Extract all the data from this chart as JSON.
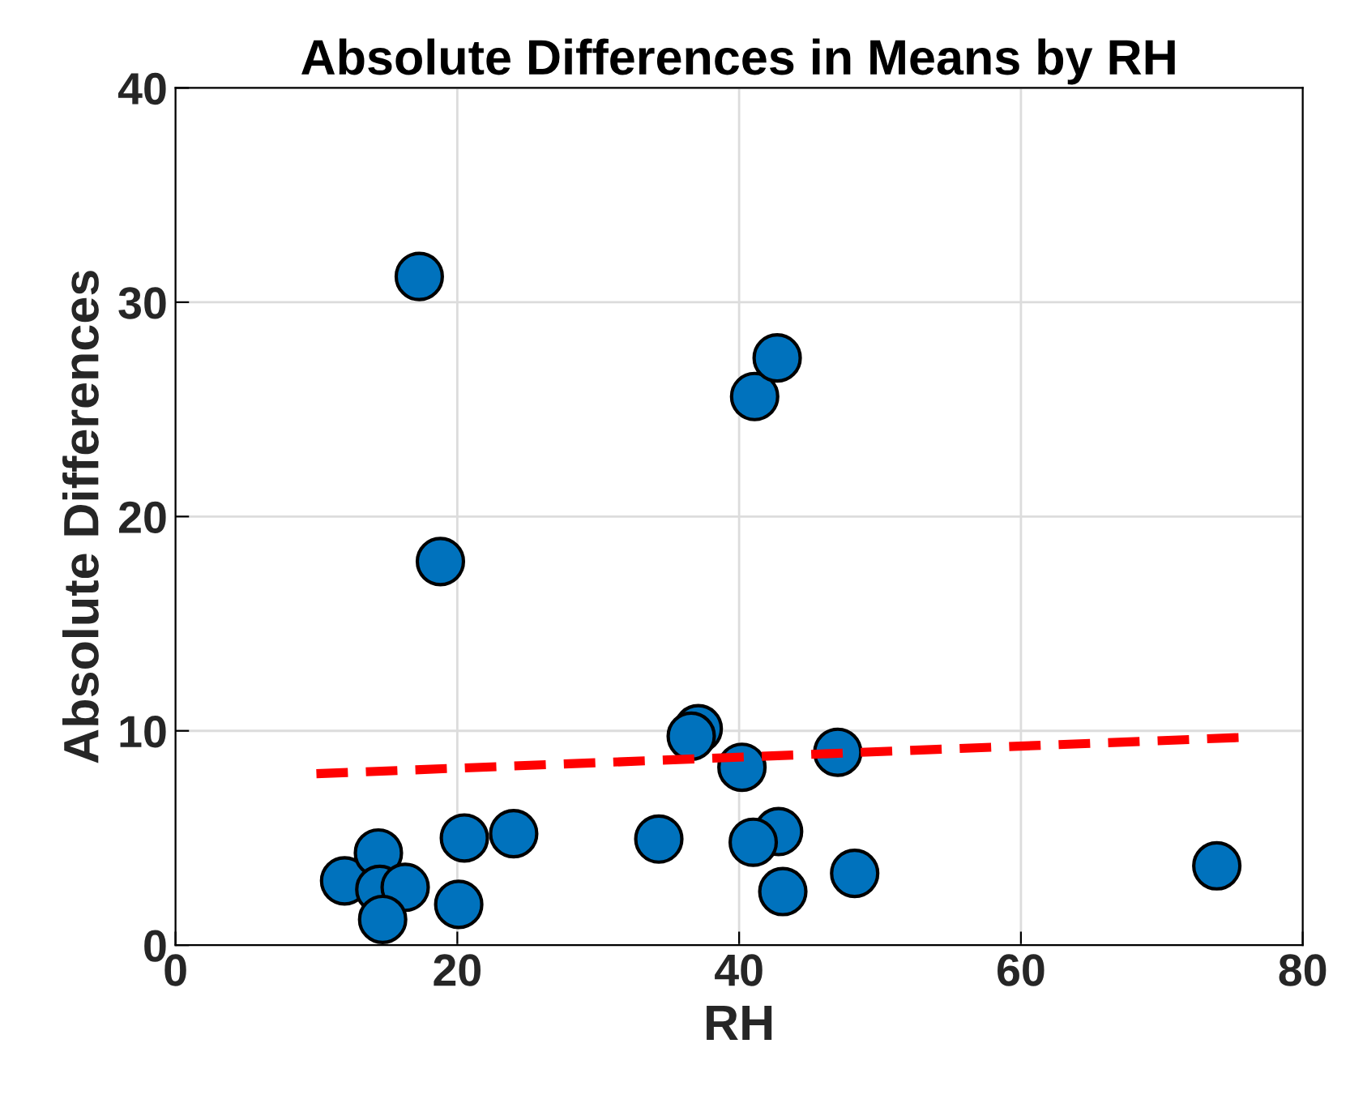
{
  "chart_data": {
    "type": "scatter",
    "title": "Absolute Differences in Means by RH",
    "xlabel": "RH",
    "ylabel": "Absolute Differences",
    "series": [
      {
        "color": "#0072bd",
        "marker": "circle",
        "x": [
          17.3,
          18.8,
          41.1,
          42.7,
          37.1,
          36.6,
          40.2,
          47.0,
          42.8,
          41.0,
          43.1,
          48.2,
          34.3,
          24.0,
          20.5,
          20.1,
          12.0,
          14.4,
          14.5,
          16.3,
          14.7,
          73.9
        ],
        "values": [
          31.2,
          17.9,
          25.6,
          27.4,
          10.1,
          9.75,
          8.3,
          9.0,
          5.3,
          4.8,
          2.5,
          3.35,
          4.95,
          5.2,
          5.0,
          1.9,
          3.0,
          4.3,
          2.6,
          2.7,
          1.2,
          3.7
        ]
      },
      {
        "type": "line",
        "color": "#ff0000",
        "line_style": "dashed",
        "x": [
          10,
          76
        ],
        "values": [
          8.0,
          9.7
        ]
      }
    ],
    "xlim": [
      0,
      80
    ],
    "ylim": [
      0,
      40
    ],
    "xticks": [
      0,
      20,
      40,
      60,
      80
    ],
    "yticks": [
      0,
      10,
      20,
      30,
      40
    ],
    "grid": true
  }
}
